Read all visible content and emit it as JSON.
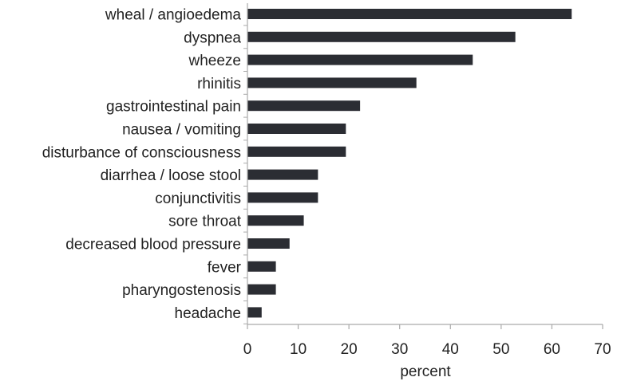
{
  "chart_data": {
    "type": "bar",
    "orientation": "horizontal",
    "categories": [
      "wheal / angioedema",
      "dyspnea",
      "wheeze",
      "rhinitis",
      "gastrointestinal pain",
      "nausea / vomiting",
      "disturbance of consciousness",
      "diarrhea / loose stool",
      "conjunctivitis",
      "sore throat",
      "decreased blood pressure",
      "fever",
      "pharyngostenosis",
      "headache"
    ],
    "values": [
      63.9,
      52.8,
      44.4,
      33.3,
      22.2,
      19.4,
      19.4,
      13.9,
      13.9,
      11.1,
      8.3,
      5.6,
      5.6,
      2.8
    ],
    "xlabel": "percent",
    "ylabel": "",
    "title": "",
    "xlim": [
      0,
      70
    ],
    "xticks": [
      0,
      10,
      20,
      30,
      40,
      50,
      60,
      70
    ],
    "grid": false,
    "legend": "none",
    "bar_color": "#2b2d33",
    "axis_color": "#aaaaaa"
  }
}
